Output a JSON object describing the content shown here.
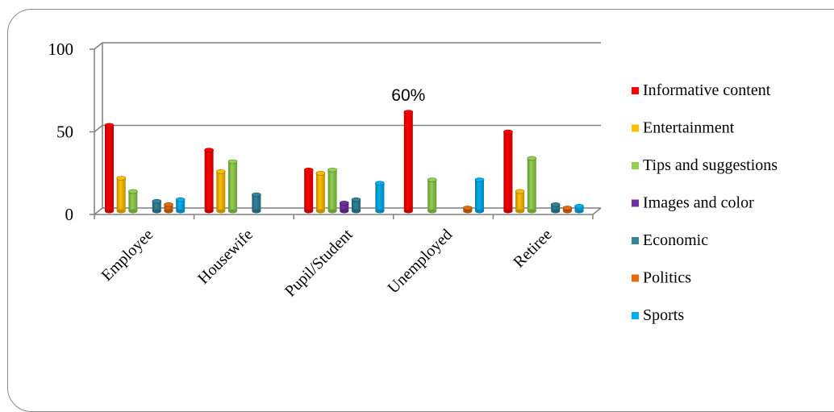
{
  "chart_data": {
    "type": "bar",
    "categories": [
      "Employee",
      "Housewife",
      "Pupil/Student",
      "Unemployed",
      "Retiree"
    ],
    "series": [
      {
        "name": "Informative content",
        "color": "#ff0000",
        "values": [
          52,
          37,
          25,
          60,
          48
        ]
      },
      {
        "name": "Entertainment",
        "color": "#ffc000",
        "values": [
          20,
          24,
          23,
          0,
          12
        ]
      },
      {
        "name": "Tips and suggestions",
        "color": "#92d050",
        "values": [
          12,
          30,
          25,
          19,
          32
        ]
      },
      {
        "name": "Images and color",
        "color": "#7030a0",
        "values": [
          0,
          0,
          5,
          0,
          0
        ]
      },
      {
        "name": "Economic",
        "color": "#31849b",
        "values": [
          6,
          10,
          7,
          0,
          4
        ]
      },
      {
        "name": "Politics",
        "color": "#e46c0a",
        "values": [
          4,
          0,
          0,
          2,
          2
        ]
      },
      {
        "name": "Sports",
        "color": "#00b0f0",
        "values": [
          7,
          0,
          17,
          19,
          3
        ]
      }
    ],
    "ylim": [
      0,
      100
    ],
    "yticks": [
      0,
      50,
      100
    ],
    "annotations": [
      {
        "text": "60%",
        "category": "Unemployed",
        "series": "Informative content"
      }
    ],
    "grid": true,
    "legend": "right",
    "title": "",
    "xlabel": "",
    "ylabel": ""
  }
}
